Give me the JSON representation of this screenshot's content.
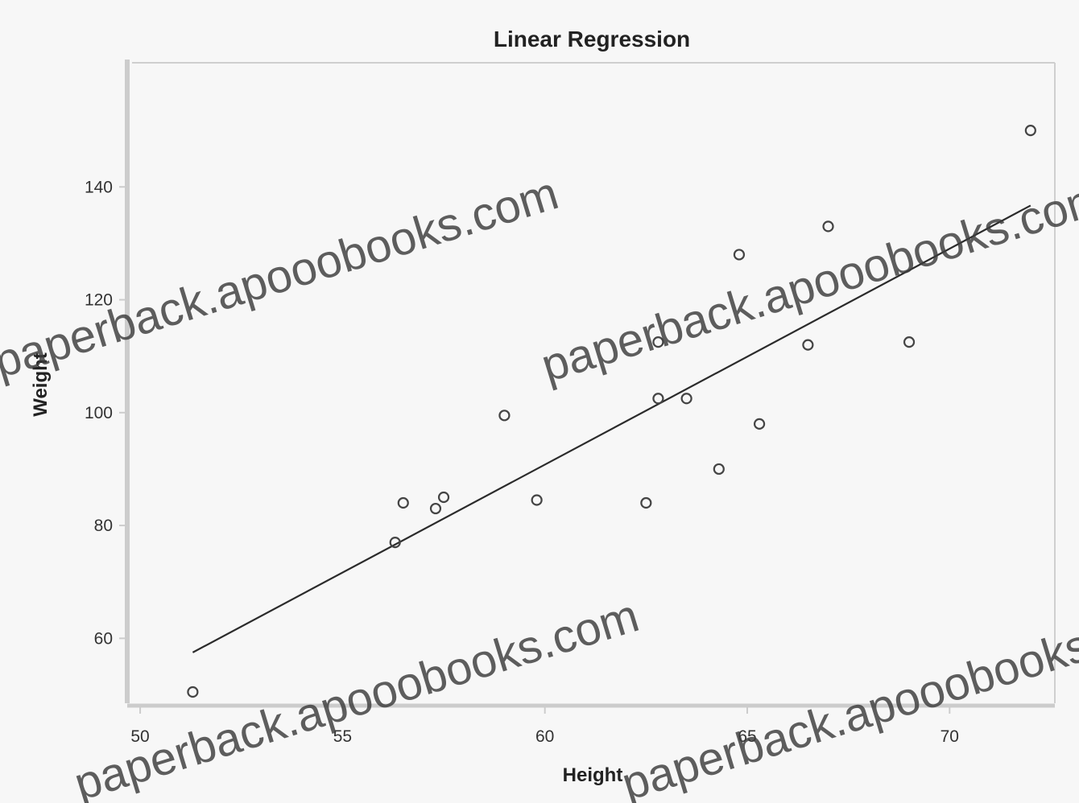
{
  "chart_data": {
    "type": "scatter",
    "title": "Linear Regression",
    "xlabel": "Height",
    "ylabel": "Weight",
    "xlim": [
      49.8,
      72.6
    ],
    "ylim": [
      48.5,
      162
    ],
    "x_ticks": [
      50,
      55,
      60,
      65,
      70
    ],
    "y_ticks": [
      60,
      80,
      100,
      120,
      140
    ],
    "grid": false,
    "series": [
      {
        "marker": "open-circle",
        "points": [
          {
            "x": 51.3,
            "y": 50.5
          },
          {
            "x": 56.3,
            "y": 77.0
          },
          {
            "x": 56.5,
            "y": 84.0
          },
          {
            "x": 57.3,
            "y": 83.0
          },
          {
            "x": 57.5,
            "y": 85.0
          },
          {
            "x": 59.0,
            "y": 99.5
          },
          {
            "x": 59.8,
            "y": 84.5
          },
          {
            "x": 62.5,
            "y": 84.0
          },
          {
            "x": 62.8,
            "y": 112.5
          },
          {
            "x": 62.8,
            "y": 102.5
          },
          {
            "x": 63.5,
            "y": 102.5
          },
          {
            "x": 64.3,
            "y": 90.0
          },
          {
            "x": 64.8,
            "y": 128.0
          },
          {
            "x": 65.3,
            "y": 98.0
          },
          {
            "x": 66.5,
            "y": 112.0
          },
          {
            "x": 67.0,
            "y": 133.0
          },
          {
            "x": 69.0,
            "y": 112.5
          },
          {
            "x": 72.0,
            "y": 150.0
          }
        ]
      }
    ],
    "regression_line": {
      "x": [
        51.3,
        72.0
      ],
      "y": [
        57.5,
        136.7
      ]
    }
  },
  "watermark": "paperback.apooobooks.com",
  "colors": {
    "background": "#f7f7f7",
    "frame": "#cfcfcf",
    "axis": "#cccccc",
    "ink": "#222222",
    "marker": "#444444",
    "line": "#2b2b2b"
  }
}
